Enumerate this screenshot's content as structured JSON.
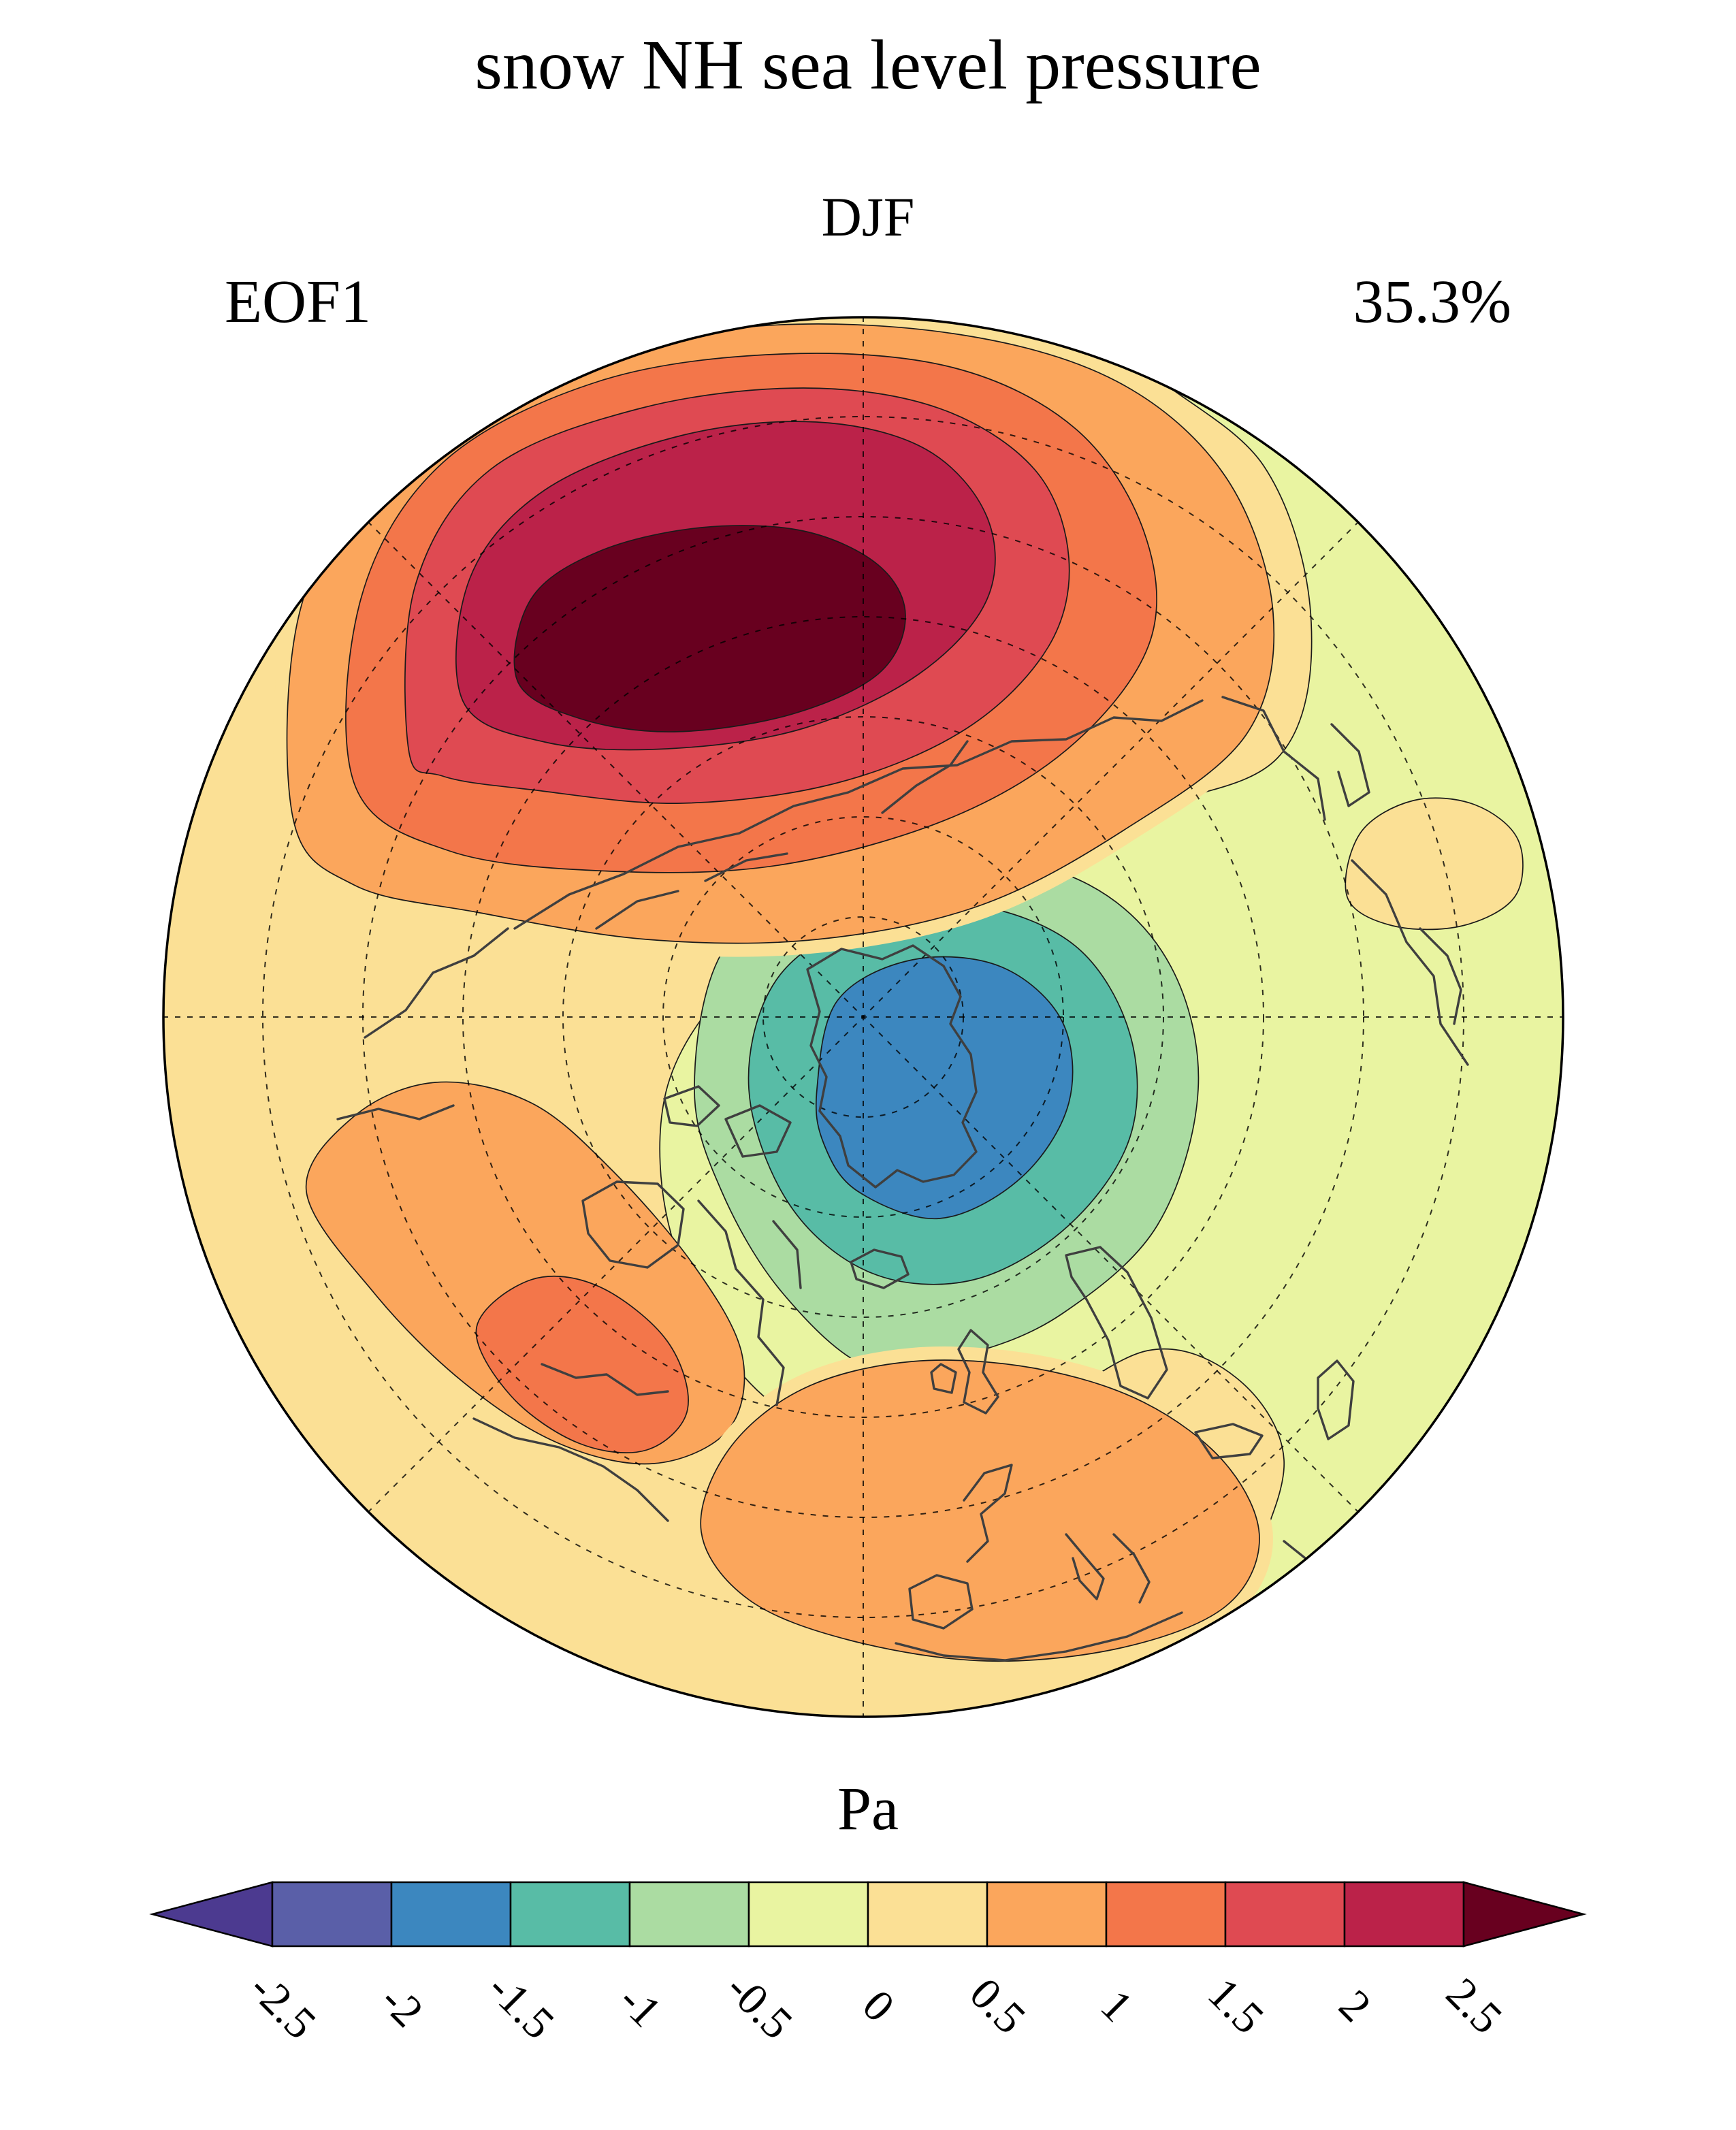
{
  "figure": {
    "title": "snow NH sea level pressure",
    "season": "DJF",
    "mode_label": "EOF1",
    "variance_label": "35.3%"
  },
  "colorbar": {
    "title": "Pa",
    "tick_labels": [
      "-2.5",
      "-2",
      "-1.5",
      "-1",
      "-0.5",
      "0",
      "0.5",
      "1",
      "1.5",
      "2",
      "2.5"
    ],
    "cells": [
      "#4C3A90",
      "#5A5FA8",
      "#3C87BF",
      "#58BCA6",
      "#ABDCA2",
      "#E9F4A1",
      "#FBE095",
      "#FBA65C",
      "#F3764A",
      "#DF4A52",
      "#BB2249",
      "#68001F"
    ]
  },
  "palette": {
    "ext_low": "#4C3A90",
    "n25": "#5A5FA8",
    "n20": "#3C87BF",
    "n15": "#58BCA6",
    "n10": "#ABDCA2",
    "n05": "#E9F4A1",
    "p00": "#FBE095",
    "p05": "#FBA65C",
    "p10": "#F3764A",
    "p15": "#DF4A52",
    "p20": "#BB2249",
    "ext_high": "#68001F"
  },
  "chart_data": {
    "type": "heatmap",
    "subtype": "filled-contour-polar-map",
    "title": "snow NH sea level pressure",
    "season": "DJF",
    "eof_mode": "EOF1",
    "variance_explained_percent": 35.3,
    "units": "Pa",
    "contour_levels": [
      -2.5,
      -2,
      -1.5,
      -1,
      -0.5,
      0,
      0.5,
      1,
      1.5,
      2,
      2.5
    ],
    "colorbar_extend": "both",
    "band_colors": [
      "#4C3A90",
      "#5A5FA8",
      "#3C87BF",
      "#58BCA6",
      "#ABDCA2",
      "#E9F4A1",
      "#FBE095",
      "#FBA65C",
      "#F3764A",
      "#DF4A52",
      "#BB2249",
      "#68001F"
    ],
    "projection": "north-polar-stereographic",
    "graticule": {
      "meridian_spacing_deg": 45,
      "latitude_circles": 6,
      "style": "dashed"
    },
    "features": [
      {
        "name": "primary-positive-center",
        "sign": "positive",
        "peak_value_pa": "> 2.5",
        "location": "Arctic Ocean / Siberian sector (upper-left of map)"
      },
      {
        "name": "primary-negative-center",
        "sign": "negative",
        "peak_value_pa": "-2 to -1.5",
        "location": "Greenland / subpolar North Atlantic (map center)"
      },
      {
        "name": "secondary-positive-namerica",
        "sign": "positive",
        "peak_value_pa": "1 to 1.5",
        "location": "North America (lower-left)"
      },
      {
        "name": "secondary-positive-europe",
        "sign": "positive",
        "peak_value_pa": "0.5 to 1",
        "location": "Southern Europe / Mediterranean (bottom)"
      },
      {
        "name": "weak-negative-background",
        "sign": "negative",
        "peak_value_pa": "-0.5 to 0",
        "location": "East Asia / Pacific sector (right side)"
      }
    ]
  }
}
